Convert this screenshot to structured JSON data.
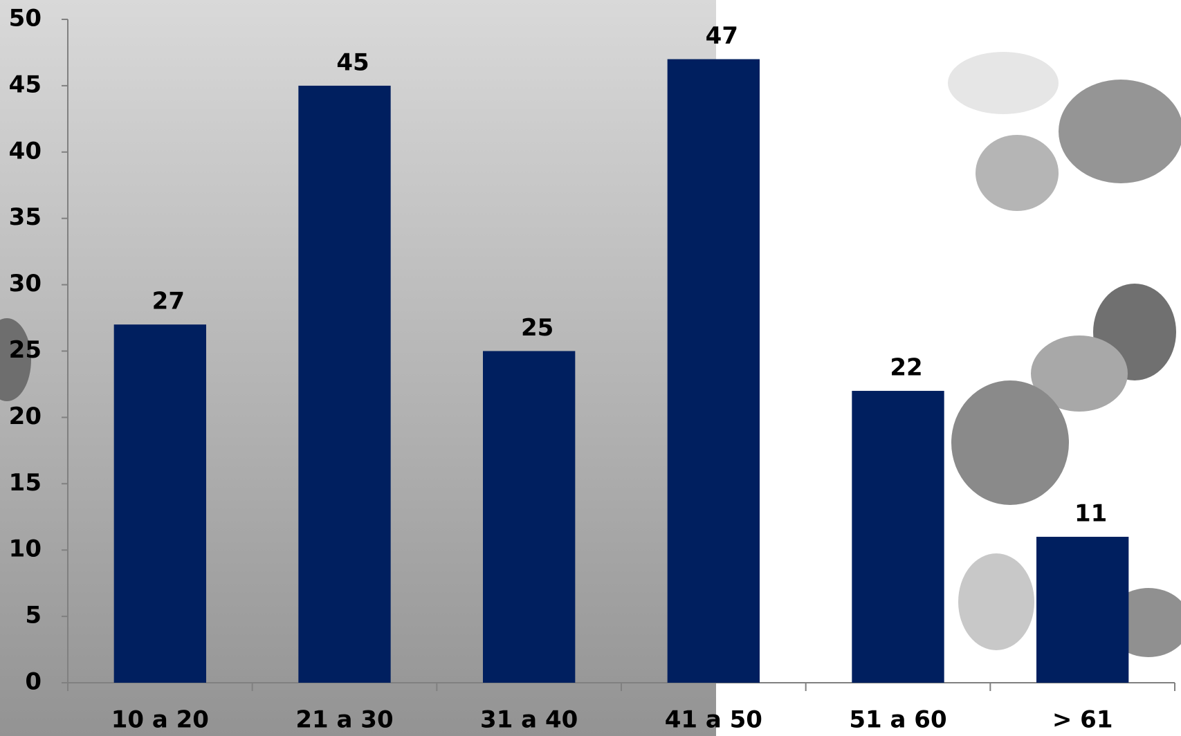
{
  "chart_data": {
    "type": "bar",
    "categories": [
      "10 a 20",
      "21 a 30",
      "31 a 40",
      "41 a 50",
      "51 a 60",
      "> 61"
    ],
    "values": [
      27,
      45,
      25,
      47,
      22,
      11
    ],
    "color": "#001f5f",
    "ylim": [
      0,
      50
    ],
    "yticks": [
      0,
      5,
      10,
      15,
      20,
      25,
      30,
      35,
      40,
      45,
      50
    ]
  }
}
